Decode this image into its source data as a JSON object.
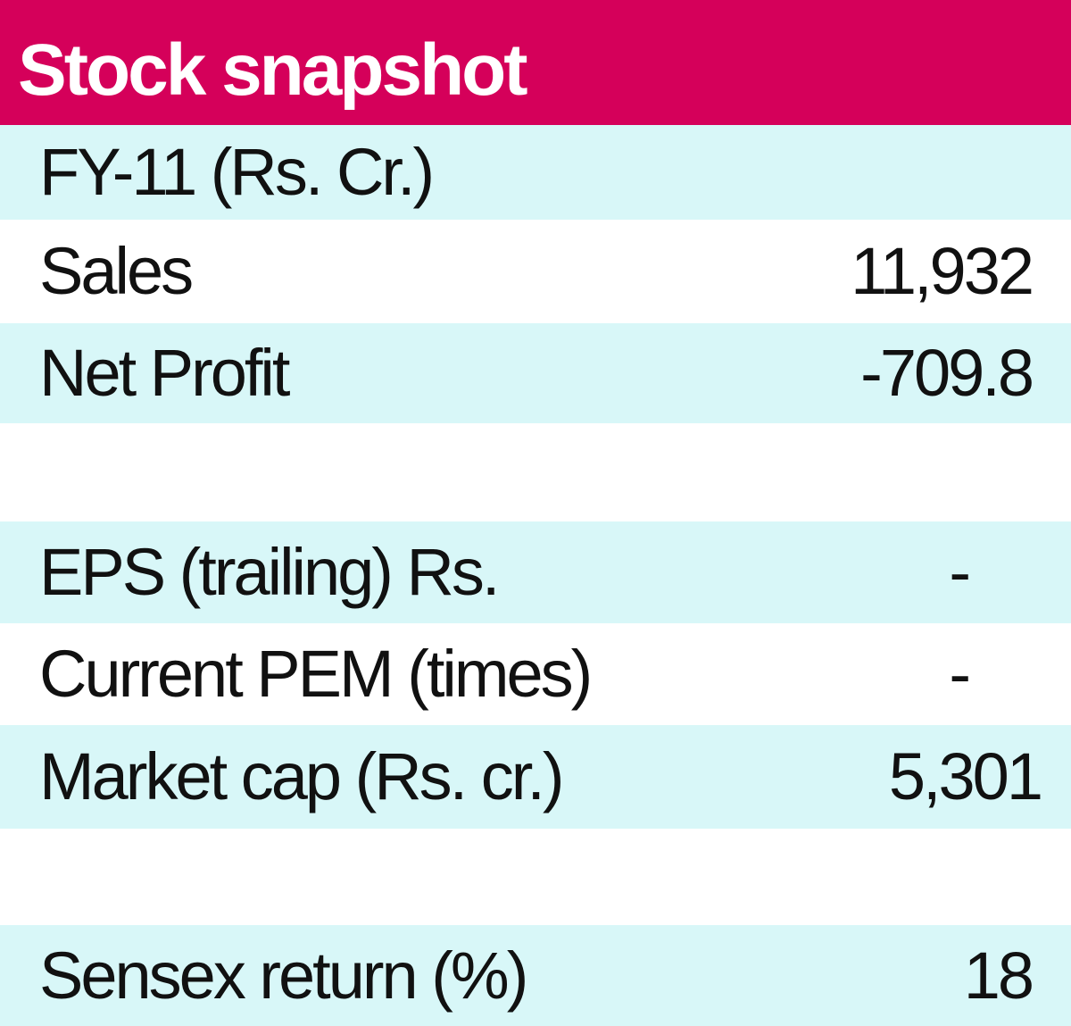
{
  "title": "Stock snapshot",
  "colors": {
    "header_bg": "#d5005a",
    "tint_row": "#d8f7f8",
    "text": "#111111"
  },
  "chart_data": {
    "type": "table",
    "title": "Stock snapshot",
    "section_heading": "FY-11 (Rs. Cr.)",
    "rows": [
      {
        "label": "Sales",
        "value": "11,932"
      },
      {
        "label": "Net Profit",
        "value": "-709.8"
      },
      {
        "label": "EPS (trailing) Rs.",
        "value": "-"
      },
      {
        "label": "Current PEM (times)",
        "value": "-"
      },
      {
        "label": "Market cap (Rs. cr.)",
        "value": "5,301"
      },
      {
        "label": "Sensex return (%)",
        "value": "18"
      }
    ]
  }
}
